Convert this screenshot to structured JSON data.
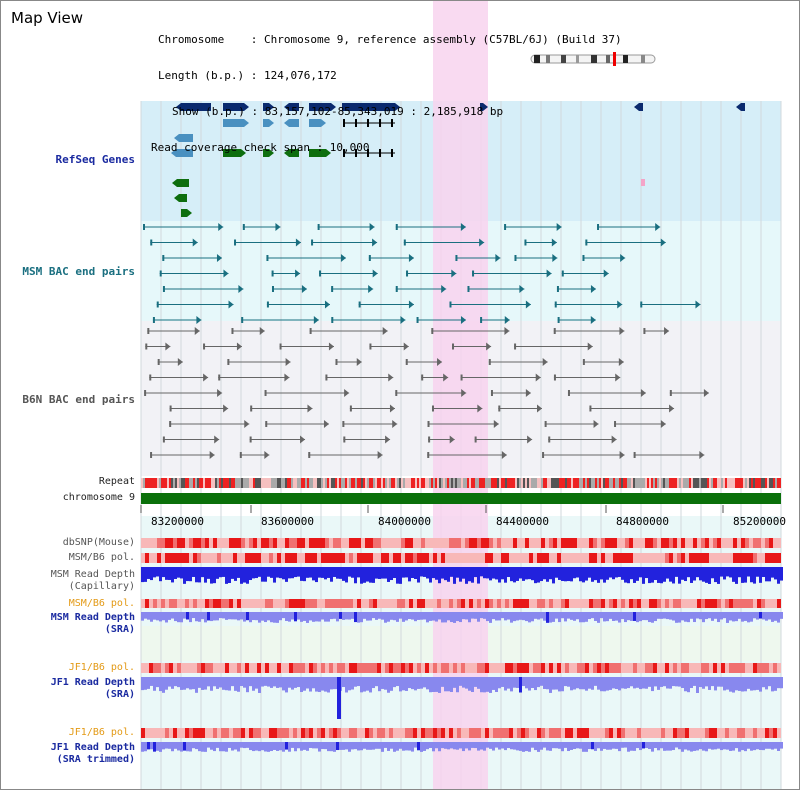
{
  "title": "Map View",
  "info": {
    "chromosome": "Chromosome    : Chromosome 9, reference assembly (C57BL/6J) (Build 37)",
    "length": "Length (b.p.) : 124,076,172",
    "show": "Show (b.p.) : 83,157,102-85,343,019 : 2,185,918 bp",
    "coverage": "Read coverage check span : 10,000"
  },
  "tracks": {
    "refseq": "RefSeq Genes",
    "msm_bac": "MSM BAC end pairs",
    "b6n_bac": "B6N BAC end pairs",
    "repeat": "Repeat",
    "chromosome": "chromosome 9",
    "dbsnp": "dbSNP(Mouse)",
    "msm_b6_pol_1": "MSM/B6 pol.",
    "msm_depth_cap_1": "MSM Read Depth",
    "msm_depth_cap_2": "(Capillary)",
    "msm_b6_pol_2": "MSM/B6 pol.",
    "msm_depth_sra_1": "MSM Read Depth",
    "msm_depth_sra_2": "(SRA)",
    "jf1_b6_pol_1": "JF1/B6 pol.",
    "jf1_depth_sra_1": "JF1 Read Depth",
    "jf1_depth_sra_2": "(SRA)",
    "jf1_b6_pol_2": "JF1/B6 pol.",
    "jf1_depth_trim_1": "JF1 Read Depth",
    "jf1_depth_trim_2": "(SRA trimmed)"
  },
  "axis_ticks": [
    "83200000",
    "83600000",
    "84000000",
    "84400000",
    "84800000",
    "85200000"
  ],
  "colors": {
    "refseq_bg": "#d6eef8",
    "msm_bac_bg": "#e6f8fa",
    "b6n_bac_bg": "#f2f2f6",
    "highlight": "#f8d4ee",
    "gene_navy": "#0a2a6e",
    "gene_blue": "#4a90c0",
    "gene_green": "#0e6e0e",
    "bac_teal": "#1a6f80",
    "bac_grey": "#666666",
    "chromosome_bar": "#0a700a",
    "depth_blue": "#2222dd",
    "depth_light": "#8888ee"
  }
}
